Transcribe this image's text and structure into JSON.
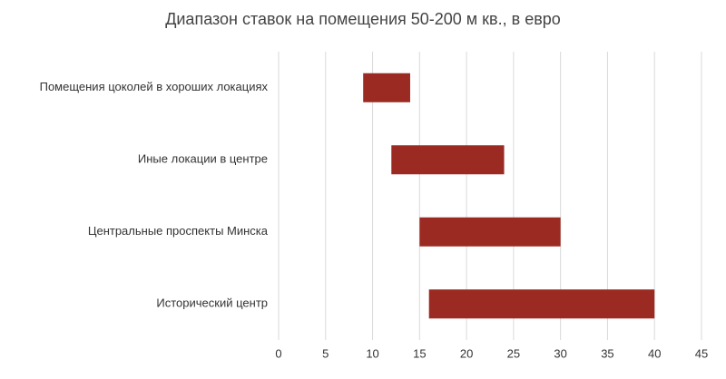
{
  "chart_data": {
    "type": "range-bar",
    "orientation": "horizontal",
    "title": "Диапазон ставок на помещения 50-200 м кв., в евро",
    "categories": [
      "Помещения цоколей в хороших локациях",
      "Иные локации в центре",
      "Центральные проспекты Минска",
      "Исторический центр"
    ],
    "starts": [
      9,
      12,
      15,
      16
    ],
    "ends": [
      14,
      24,
      30,
      40
    ],
    "color": "#9b2a22",
    "xlim": [
      0,
      45
    ],
    "xticks": [
      0,
      5,
      10,
      15,
      20,
      25,
      30,
      35,
      40,
      45
    ],
    "grid": true
  }
}
